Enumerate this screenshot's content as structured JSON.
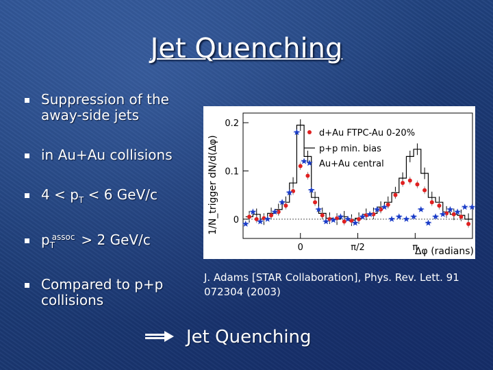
{
  "slide": {
    "title": "Jet Quenching",
    "bullets": [
      {
        "main": "Suppression of the away-side jets"
      },
      {
        "main": "in Au+Au collisions"
      },
      {
        "pre": "4 < p",
        "sub": "T",
        "post": " < 6 GeV/c"
      },
      {
        "pre": "p",
        "sub": "T",
        "sup": "assoc",
        "post": " > 2 GeV/c"
      },
      {
        "main": "Compared to p+p collisions"
      }
    ],
    "citation": "J. Adams [STAR Collaboration], Phys. Rev. Lett. 91 072304 (2003)",
    "conclusion": "Jet Quenching",
    "arrow_icon": "right-arrow-icon"
  },
  "chart_data": {
    "type": "scatter",
    "title": "",
    "xlabel": "Δφ (radians)",
    "ylabel": "1/N_trigger dN/d(Δφ)",
    "xlim": [
      -1.57,
      4.71
    ],
    "ylim": [
      -0.04,
      0.22
    ],
    "x_ticks": [
      {
        "value": 0,
        "label": "0"
      },
      {
        "value": 1.5708,
        "label": "π/2"
      },
      {
        "value": 3.1416,
        "label": "π"
      }
    ],
    "y_ticks": [
      {
        "value": 0,
        "label": "0"
      },
      {
        "value": 0.1,
        "label": "0.1"
      },
      {
        "value": 0.2,
        "label": "0.2"
      }
    ],
    "legend_position": "top-right",
    "series": [
      {
        "name": "d+Au FTPC-Au 0-20%",
        "style": "red-circles",
        "color": "#e02020",
        "x": [
          -1.4,
          -1.2,
          -1.0,
          -0.8,
          -0.6,
          -0.4,
          -0.2,
          0.0,
          0.2,
          0.4,
          0.6,
          0.8,
          1.0,
          1.2,
          1.4,
          1.6,
          1.8,
          2.0,
          2.2,
          2.4,
          2.6,
          2.8,
          3.0,
          3.2,
          3.4,
          3.6,
          3.8,
          4.0,
          4.2,
          4.4,
          4.6
        ],
        "y": [
          0.005,
          0.0,
          0.002,
          0.008,
          0.015,
          0.028,
          0.058,
          0.11,
          0.09,
          0.035,
          0.008,
          0.0,
          0.002,
          -0.005,
          -0.003,
          0.0,
          0.008,
          0.01,
          0.02,
          0.03,
          0.05,
          0.075,
          0.08,
          0.072,
          0.06,
          0.035,
          0.028,
          0.012,
          0.01,
          0.005,
          -0.01
        ]
      },
      {
        "name": "p+p min. bias",
        "style": "black-histogram",
        "color": "#000000",
        "x": [
          -1.4,
          -1.2,
          -1.0,
          -0.8,
          -0.6,
          -0.4,
          -0.2,
          0.0,
          0.2,
          0.4,
          0.6,
          0.8,
          1.0,
          1.2,
          1.4,
          1.6,
          1.8,
          2.0,
          2.2,
          2.4,
          2.6,
          2.8,
          3.0,
          3.2,
          3.4,
          3.6,
          3.8,
          4.0,
          4.2,
          4.4,
          4.6
        ],
        "y": [
          0.005,
          0.01,
          0.0,
          0.012,
          0.02,
          0.035,
          0.075,
          0.195,
          0.13,
          0.045,
          0.012,
          0.002,
          0.0,
          0.005,
          -0.002,
          0.002,
          0.01,
          0.012,
          0.025,
          0.035,
          0.055,
          0.085,
          0.13,
          0.145,
          0.095,
          0.045,
          0.035,
          0.015,
          0.01,
          0.008,
          0.0
        ]
      },
      {
        "name": "Au+Au central",
        "style": "blue-stars",
        "color": "#1a3cc8",
        "x": [
          -1.5,
          -1.3,
          -1.1,
          -0.9,
          -0.7,
          -0.5,
          -0.3,
          -0.1,
          0.1,
          0.3,
          0.5,
          0.7,
          0.9,
          1.1,
          1.3,
          1.5,
          1.7,
          1.9,
          2.1,
          2.3,
          2.5,
          2.7,
          2.9,
          3.1,
          3.3,
          3.5,
          3.7,
          3.9,
          4.1,
          4.3,
          4.5,
          4.7
        ],
        "y": [
          -0.01,
          0.015,
          -0.005,
          0.0,
          0.015,
          0.035,
          0.055,
          0.18,
          0.12,
          0.06,
          0.02,
          -0.005,
          -0.002,
          0.005,
          0.0,
          -0.008,
          0.005,
          0.01,
          0.02,
          0.025,
          0.0,
          0.005,
          0.0,
          0.005,
          0.02,
          -0.008,
          0.005,
          0.01,
          0.02,
          0.015,
          0.025,
          0.025
        ]
      }
    ]
  }
}
